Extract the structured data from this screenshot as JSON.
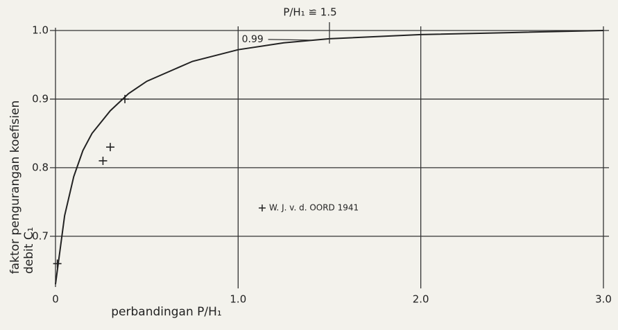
{
  "chart_data": {
    "type": "line",
    "x_label": "perbandingan P/H₁",
    "y_label": [
      "faktor pengurangan koefisien",
      "debit C₁"
    ],
    "annotations": [
      {
        "text": "0.99",
        "x": 1.02,
        "y": 0.99,
        "target_x": 1.4,
        "target_y": 0.986
      },
      {
        "text": "P/H₁ ≌ 1.5",
        "x": 1.5,
        "y": 0.985
      }
    ],
    "series": [
      {
        "color": "#222222",
        "style": "line",
        "x": [
          0,
          0.02,
          0.05,
          0.1,
          0.15,
          0.2,
          0.3,
          0.4,
          0.5,
          0.75,
          1.0,
          1.25,
          1.5,
          2.0,
          2.5,
          3.0
        ],
        "y": [
          0.63,
          0.67,
          0.73,
          0.787,
          0.825,
          0.85,
          0.883,
          0.908,
          0.926,
          0.955,
          0.972,
          0.982,
          0.988,
          0.994,
          0.997,
          1.0
        ]
      },
      {
        "name": "W. J. v. d. OORD 1941",
        "color": "#222222",
        "style": "cross",
        "x": [
          0.38,
          0.3,
          0.26,
          0.01
        ],
        "y": [
          0.9,
          0.83,
          0.81,
          0.66
        ]
      }
    ],
    "xlim": [
      0,
      3
    ],
    "ylim": [
      0.63,
      1.0
    ],
    "xticks": [
      0,
      {
        "value": 1,
        "label": "1.0"
      },
      {
        "value": 2,
        "label": "2.0"
      },
      {
        "value": 3,
        "label": "3.0"
      }
    ],
    "yticks": [
      0.7,
      0.8,
      0.9,
      {
        "value": 1,
        "label": "1.0"
      }
    ],
    "grid": true
  }
}
